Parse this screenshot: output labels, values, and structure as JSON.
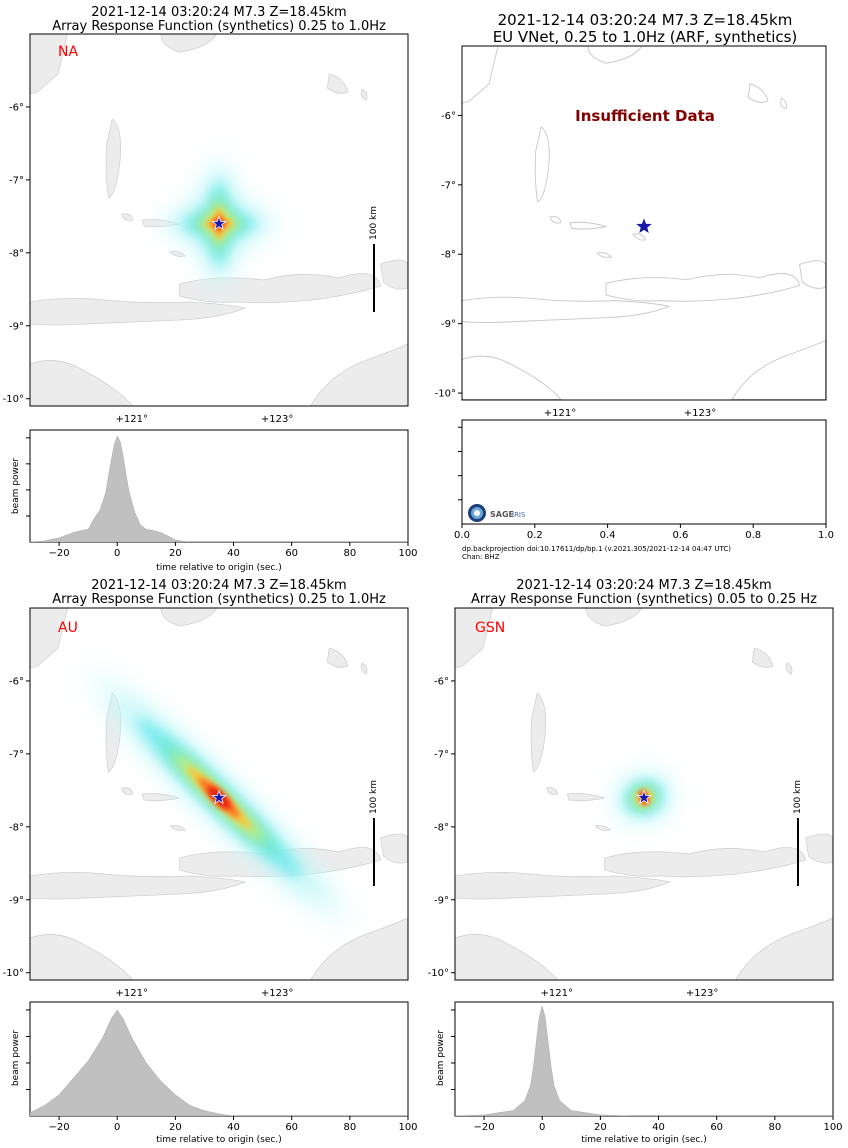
{
  "figure": {
    "footer": {
      "citation": "dp.backprojection doi:10.17611/dp/bp.1 (v.2021.305/2021-12-14 04:47 UTC)",
      "channel": "Chan: BHZ"
    },
    "logo": {
      "text": "SAGE",
      "text2": "IRIS"
    }
  },
  "chart_data": [
    {
      "type": "heatmap",
      "panel": "map-na",
      "title_lines": [
        "2021-12-14 03:20:24 M7.3 Z=18.45km",
        "Array Response Function (synthetics) 0.25 to 1.0Hz"
      ],
      "array_label": "NA",
      "array_label_color": "#ff0000",
      "x_ticks": [
        "+121°",
        "+123°"
      ],
      "y_ticks": [
        "-6°",
        "-7°",
        "-8°",
        "-9°",
        "-10°"
      ],
      "lon_range": [
        119.6,
        124.8
      ],
      "lat_range": [
        -10.1,
        -5.0
      ],
      "epicenter": {
        "lon": 122.2,
        "lat": -7.6
      },
      "scale_bar_label": "100 km",
      "pattern": {
        "shape": "diamond",
        "major_km": 230,
        "minor_km": 200,
        "orientation_deg": 0
      }
    },
    {
      "type": "heatmap",
      "panel": "map-eu",
      "title_lines": [
        "2021-12-14 03:20:24 M7.3 Z=18.45km",
        "EU VNet, 0.25 to 1.0Hz (ARF, synthetics)"
      ],
      "annotation": "Insufficient Data",
      "annotation_color": "#800000",
      "x_ticks": [
        "+121°",
        "+123°"
      ],
      "y_ticks": [
        "-6°",
        "-7°",
        "-8°",
        "-9°",
        "-10°"
      ],
      "lon_range": [
        119.6,
        124.8
      ],
      "lat_range": [
        -10.1,
        -5.0
      ],
      "epicenter": {
        "lon": 122.2,
        "lat": -7.6
      }
    },
    {
      "type": "area",
      "panel": "beam-na",
      "ylabel": "beam power",
      "xlabel": "time relative to origin (sec.)",
      "xlim": [
        -30,
        100
      ],
      "x_ticks": [
        -20,
        0,
        20,
        40,
        60,
        80,
        100
      ],
      "x": [
        -30,
        -25,
        -20,
        -15,
        -12,
        -10,
        -8,
        -6,
        -4,
        -3,
        -2,
        -1,
        0,
        1,
        2,
        3,
        4,
        6,
        8,
        10,
        12,
        15,
        18,
        20,
        22,
        25,
        30,
        40,
        60,
        100
      ],
      "y": [
        0,
        0.01,
        0.04,
        0.09,
        0.11,
        0.12,
        0.22,
        0.3,
        0.46,
        0.62,
        0.78,
        0.92,
        1.0,
        0.95,
        0.82,
        0.64,
        0.48,
        0.28,
        0.16,
        0.12,
        0.11,
        0.09,
        0.05,
        0.02,
        0.01,
        0,
        0,
        0,
        0,
        0
      ]
    },
    {
      "type": "area",
      "panel": "beam-eu",
      "ylabel": "",
      "xlabel": "",
      "xlim": [
        0,
        1
      ],
      "x_ticks": [
        "0.0",
        "0.2",
        "0.4",
        "0.6",
        "0.8",
        "1.0"
      ],
      "x": [],
      "y": []
    },
    {
      "type": "heatmap",
      "panel": "map-au",
      "title_lines": [
        "2021-12-14 03:20:24 M7.3 Z=18.45km",
        "Array Response Function (synthetics) 0.25 to 1.0Hz"
      ],
      "array_label": "AU",
      "array_label_color": "#ff0000",
      "x_ticks": [
        "+121°",
        "+123°"
      ],
      "y_ticks": [
        "-6°",
        "-7°",
        "-8°",
        "-9°",
        "-10°"
      ],
      "lon_range": [
        119.6,
        124.8
      ],
      "lat_range": [
        -10.1,
        -5.0
      ],
      "epicenter": {
        "lon": 122.2,
        "lat": -7.6
      },
      "scale_bar_label": "100 km",
      "pattern": {
        "shape": "ellipse",
        "major_km": 560,
        "minor_km": 70,
        "orientation_deg": -44
      }
    },
    {
      "type": "heatmap",
      "panel": "map-gsn",
      "title_lines": [
        "2021-12-14 03:20:24 M7.3 Z=18.45km",
        "Array Response Function (synthetics) 0.05 to 0.25 Hz"
      ],
      "array_label": "GSN",
      "array_label_color": "#ff0000",
      "x_ticks": [
        "+121°",
        "+123°"
      ],
      "y_ticks": [
        "-6°",
        "-7°",
        "-8°",
        "-9°",
        "-10°"
      ],
      "lon_range": [
        119.6,
        124.8
      ],
      "lat_range": [
        -10.1,
        -5.0
      ],
      "epicenter": {
        "lon": 122.2,
        "lat": -7.6
      },
      "scale_bar_label": "100 km",
      "pattern": {
        "shape": "ellipse",
        "major_km": 95,
        "minor_km": 80,
        "orientation_deg": 20
      }
    },
    {
      "type": "area",
      "panel": "beam-au",
      "ylabel": "beam power",
      "xlabel": "time relative to origin (sec.)",
      "xlim": [
        -30,
        100
      ],
      "x_ticks": [
        -20,
        0,
        20,
        40,
        60,
        80,
        100
      ],
      "x": [
        -30,
        -25,
        -20,
        -15,
        -10,
        -5,
        -2,
        0,
        2,
        5,
        10,
        15,
        20,
        25,
        30,
        35,
        40,
        100
      ],
      "y": [
        0.03,
        0.1,
        0.2,
        0.36,
        0.52,
        0.74,
        0.92,
        1.0,
        0.92,
        0.74,
        0.5,
        0.33,
        0.2,
        0.1,
        0.05,
        0.02,
        0,
        0
      ]
    },
    {
      "type": "area",
      "panel": "beam-gsn",
      "ylabel": "beam power",
      "xlabel": "time relative to origin (sec.)",
      "xlim": [
        -30,
        100
      ],
      "x_ticks": [
        -20,
        0,
        20,
        40,
        60,
        80,
        100
      ],
      "x": [
        -30,
        -20,
        -10,
        -6,
        -4,
        -3,
        -2,
        -1,
        0,
        1,
        2,
        3,
        4,
        6,
        10,
        20,
        30,
        100
      ],
      "y": [
        0,
        0.01,
        0.05,
        0.14,
        0.28,
        0.45,
        0.68,
        0.9,
        1.0,
        0.9,
        0.68,
        0.45,
        0.28,
        0.14,
        0.05,
        0.01,
        0,
        0
      ]
    }
  ]
}
